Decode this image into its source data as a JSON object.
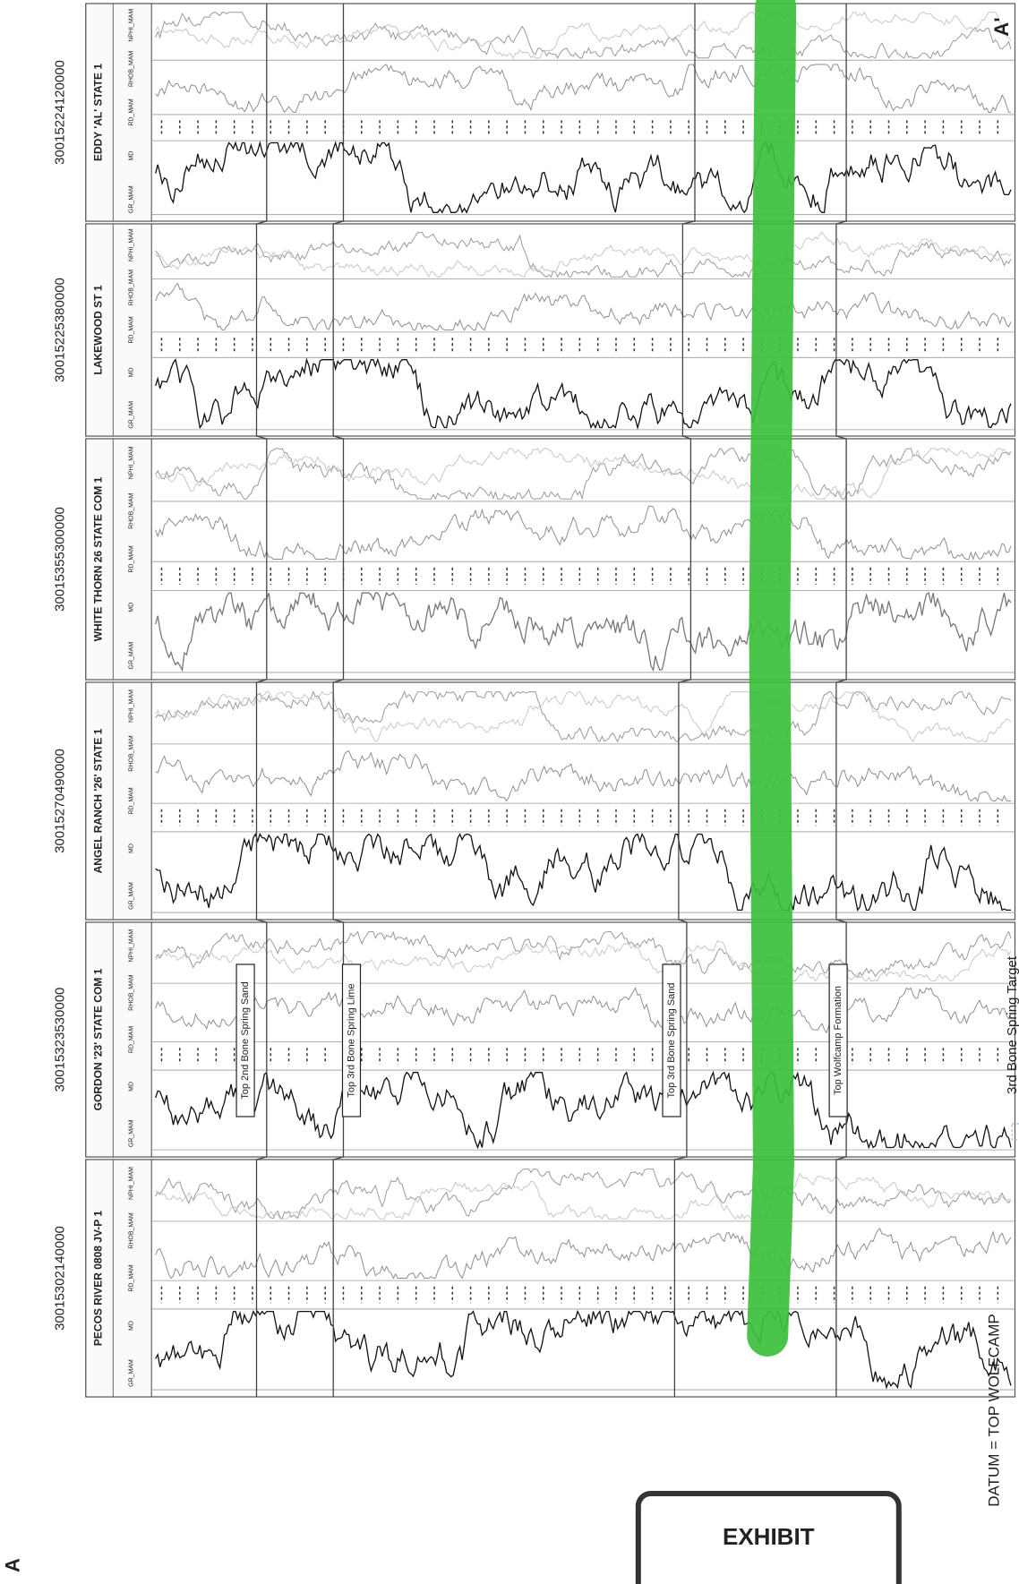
{
  "section": {
    "start_label": "A",
    "end_label": "A'"
  },
  "wells": [
    {
      "api": "30015302140000",
      "name": "PECOS RIVER 0808 JV-P 1"
    },
    {
      "api": "30015323530000",
      "name": "GORDON '23' STATE COM 1"
    },
    {
      "api": "30015270490000",
      "name": "ANGEL RANCH '26' STATE 1"
    },
    {
      "api": "30015355300000",
      "name": "WHITE THORN 26 STATE COM 1"
    },
    {
      "api": "30015225380000",
      "name": "LAKEWOOD ST 1"
    },
    {
      "api": "30015224120000",
      "name": "EDDY 'AL' STATE 1"
    }
  ],
  "track_headers": [
    "GR_MAM",
    "MD",
    "RD_MAM",
    "RHOB_MAM",
    "NPHI_MAM"
  ],
  "formation_tops": [
    "Top 2nd Bone Spring Sand",
    "Top 3rd Bone Spring Lime",
    "Top 3rd Bone Spring Sand",
    "Top Wolfcamp Formation"
  ],
  "datum": "DATUM = TOP WOLFCAMP",
  "legend": "3rd Bone Spring Target",
  "exhibit": "EXHIBIT"
}
